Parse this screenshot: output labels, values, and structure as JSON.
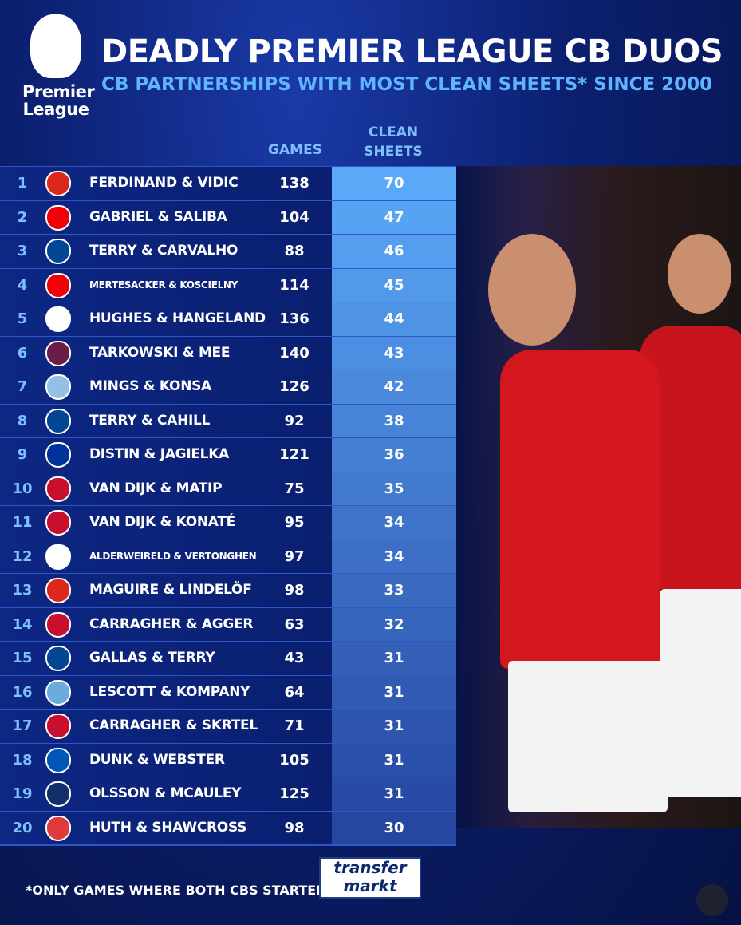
{
  "header": {
    "logo": "Premier League",
    "title": "DEADLY PREMIER LEAGUE CB DUOS",
    "subtitle": "CB PARTNERSHIPS WITH MOST CLEAN SHEETS* SINCE 2000"
  },
  "table": {
    "columns": [
      "GAMES",
      "CLEAN SHEETS"
    ],
    "rows": [
      [
        "1",
        "FERDINAND & VIDIC",
        "138",
        "70"
      ],
      [
        "2",
        "GABRIEL & SALIBA",
        "104",
        "47"
      ],
      [
        "3",
        "TERRY & CARVALHO",
        "88",
        "46"
      ],
      [
        "4",
        "MERTESACKER & KOSCIELNY",
        "114",
        "45"
      ],
      [
        "5",
        "HUGHES & HANGELAND",
        "136",
        "44"
      ],
      [
        "6",
        "TARKOWSKI & MEE",
        "140",
        "43"
      ],
      [
        "7",
        "MINGS & KONSA",
        "126",
        "42"
      ],
      [
        "8",
        "TERRY & CAHILL",
        "92",
        "38"
      ],
      [
        "9",
        "DISTIN & JAGIELKA",
        "121",
        "36"
      ],
      [
        "10",
        "VAN DIJK & MATIP",
        "75",
        "35"
      ],
      [
        "11",
        "VAN DIJK & KONATÉ",
        "95",
        "34"
      ],
      [
        "12",
        "ALDERWEIRELD & VERTONGHEN",
        "97",
        "34"
      ],
      [
        "13",
        "MAGUIRE & LINDELÖF",
        "98",
        "33"
      ],
      [
        "14",
        "CARRAGHER & AGGER",
        "63",
        "32"
      ],
      [
        "15",
        "GALLAS & TERRY",
        "43",
        "31"
      ],
      [
        "16",
        "LESCOTT & KOMPANY",
        "64",
        "31"
      ],
      [
        "17",
        "CARRAGHER & SKRTEL",
        "71",
        "31"
      ],
      [
        "18",
        "DUNK & WEBSTER",
        "105",
        "31"
      ],
      [
        "19",
        "OLSSON & MCAULEY",
        "125",
        "31"
      ],
      [
        "20",
        "HUTH & SHAWCROSS",
        "98",
        "30"
      ]
    ]
  },
  "footer": {
    "note": "*ONLY GAMES WHERE BOTH CBS STARTED",
    "brand": [
      "transfer",
      "markt"
    ]
  }
}
